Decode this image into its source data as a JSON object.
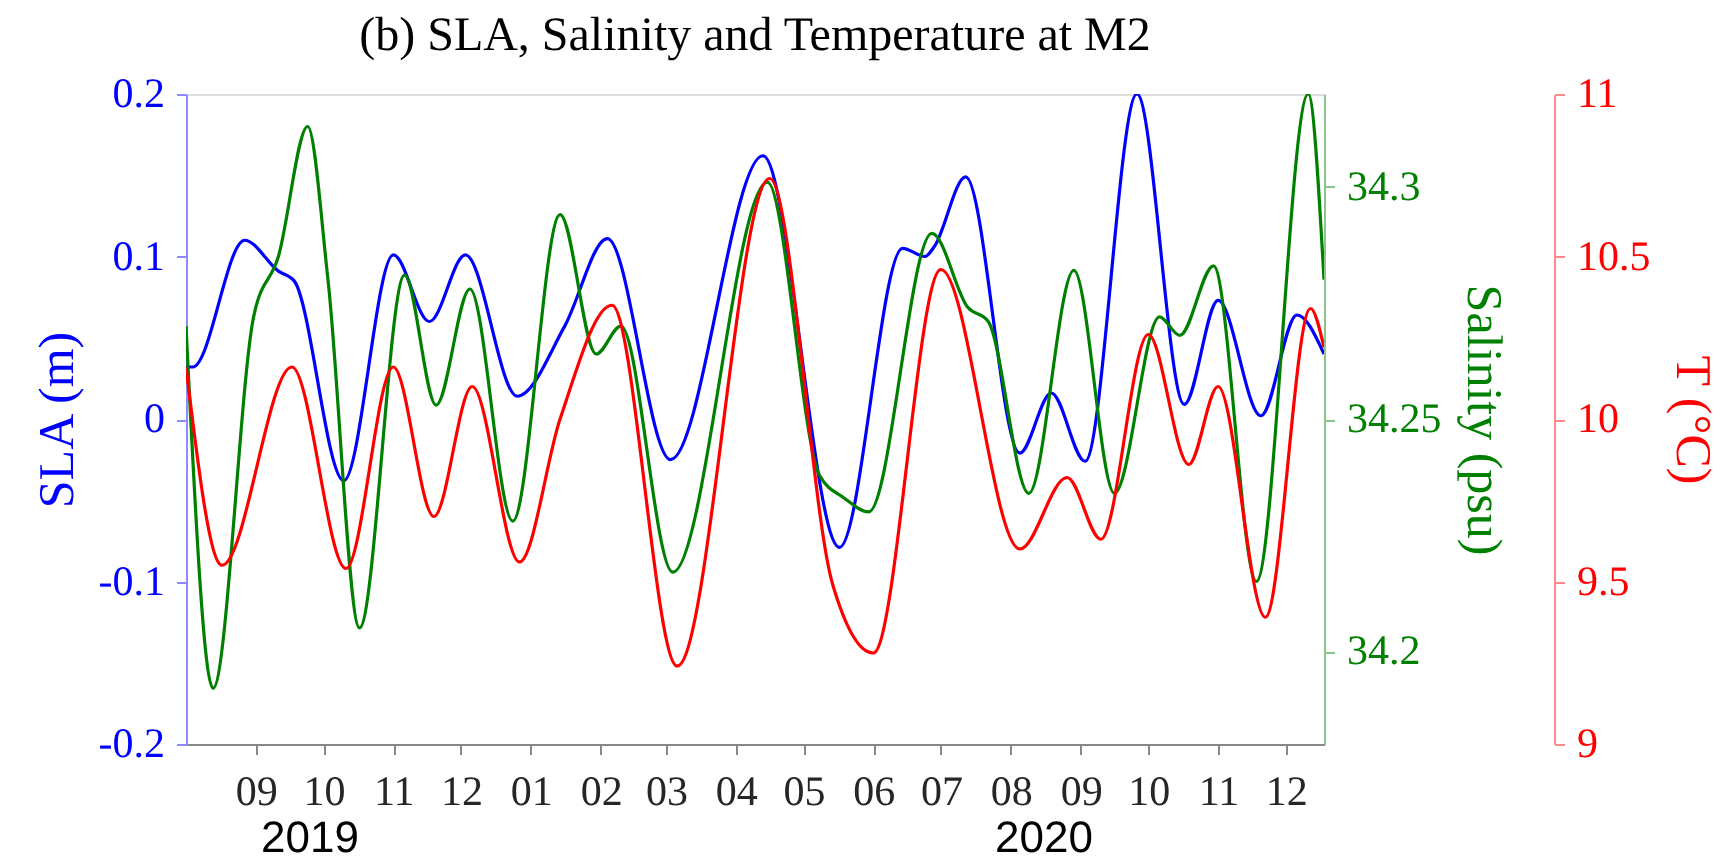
{
  "chart_data": {
    "type": "line",
    "title": "(b) SLA, Salinity and Temperature at M2",
    "ylabel": "SLA (m)",
    "y2label": "Salinity (psu)",
    "y3label": "T (°C)",
    "annotations": [
      "2019",
      "2020"
    ],
    "xlim": [
      "2019-08-01",
      "2020-12-18"
    ],
    "xticks": [
      {
        "value": "2019-09-01",
        "label": "09"
      },
      {
        "value": "2019-10-01",
        "label": "10"
      },
      {
        "value": "2019-11-01",
        "label": "11"
      },
      {
        "value": "2019-12-01",
        "label": "12"
      },
      {
        "value": "2020-01-01",
        "label": "01"
      },
      {
        "value": "2020-02-01",
        "label": "02"
      },
      {
        "value": "2020-03-01",
        "label": "03"
      },
      {
        "value": "2020-04-01",
        "label": "04"
      },
      {
        "value": "2020-05-01",
        "label": "05"
      },
      {
        "value": "2020-06-01",
        "label": "06"
      },
      {
        "value": "2020-07-01",
        "label": "07"
      },
      {
        "value": "2020-08-01",
        "label": "08"
      },
      {
        "value": "2020-09-01",
        "label": "09"
      },
      {
        "value": "2020-10-01",
        "label": "10"
      },
      {
        "value": "2020-11-01",
        "label": "11"
      },
      {
        "value": "2020-12-01",
        "label": "12"
      }
    ],
    "ylim": [
      -0.2,
      0.2
    ],
    "yticks": [
      -0.2,
      -0.1,
      0,
      0.1,
      0.2
    ],
    "y2lim": [
      34.18,
      34.32
    ],
    "y2ticks": [
      34.2,
      34.25,
      34.3
    ],
    "y3lim": [
      9,
      11
    ],
    "y3ticks": [
      9,
      9.5,
      10,
      10.5,
      11
    ],
    "grid": false,
    "series": [
      {
        "color": "#0000ff",
        "axis": "y",
        "x": [
          "2019-08-01",
          "2019-08-04",
          "2019-08-27",
          "2019-09-11",
          "2019-09-18",
          "2019-10-10",
          "2019-11-01",
          "2019-11-17",
          "2019-12-03",
          "2019-12-26",
          "2020-01-16",
          "2020-02-04",
          "2020-03-03",
          "2020-04-13",
          "2020-05-17",
          "2020-06-14",
          "2020-06-24",
          "2020-06-28",
          "2020-07-12",
          "2020-08-05",
          "2020-08-19",
          "2020-09-03",
          "2020-09-26",
          "2020-10-17",
          "2020-11-01",
          "2020-11-20",
          "2020-12-06",
          "2020-12-18"
        ],
        "values": [
          0.032,
          0.032,
          0.11,
          0.091,
          0.085,
          -0.038,
          0.101,
          0.06,
          0.101,
          0.014,
          0.057,
          0.111,
          -0.025,
          0.162,
          -0.079,
          0.105,
          0.1,
          0.106,
          0.149,
          -0.021,
          0.016,
          -0.026,
          0.2,
          0.009,
          0.073,
          0.002,
          0.064,
          0.04
        ]
      },
      {
        "color": "#008000",
        "axis": "y2",
        "x": [
          "2019-08-01",
          "2019-08-13",
          "2019-08-31",
          "2019-09-11",
          "2019-09-24",
          "2019-10-03",
          "2019-10-17",
          "2019-11-06",
          "2019-11-20",
          "2019-12-05",
          "2019-12-24",
          "2020-01-14",
          "2020-01-30",
          "2020-02-10",
          "2020-03-04",
          "2020-04-15",
          "2020-05-08",
          "2020-05-19",
          "2020-05-30",
          "2020-06-27",
          "2020-07-13",
          "2020-07-22",
          "2020-08-09",
          "2020-08-29",
          "2020-09-16",
          "2020-10-06",
          "2020-10-15",
          "2020-10-30",
          "2020-11-18",
          "2020-12-11",
          "2020-12-18"
        ],
        "values": [
          34.27,
          34.192,
          34.272,
          34.285,
          34.313,
          34.28,
          34.205,
          34.281,
          34.253,
          34.278,
          34.228,
          34.294,
          34.264,
          34.27,
          34.217,
          34.301,
          34.238,
          34.233,
          34.23,
          34.29,
          34.274,
          34.271,
          34.234,
          34.282,
          34.234,
          34.272,
          34.268,
          34.283,
          34.215,
          34.32,
          34.28
        ]
      },
      {
        "color": "#ff0000",
        "axis": "y3",
        "x": [
          "2019-08-01",
          "2019-08-17",
          "2019-09-17",
          "2019-10-11",
          "2019-11-01",
          "2019-11-19",
          "2019-12-06",
          "2019-12-27",
          "2020-01-14",
          "2020-02-06",
          "2020-03-06",
          "2020-04-16",
          "2020-05-14",
          "2020-06-01",
          "2020-07-01",
          "2020-08-05",
          "2020-08-26",
          "2020-09-10",
          "2020-10-01",
          "2020-10-19",
          "2020-11-01",
          "2020-11-22",
          "2020-12-12",
          "2020-12-18"
        ],
        "values": [
          10.16,
          9.55,
          10.16,
          9.54,
          10.16,
          9.7,
          10.1,
          9.56,
          10.0,
          10.35,
          9.24,
          10.74,
          9.49,
          9.28,
          10.46,
          9.6,
          9.82,
          9.63,
          10.26,
          9.86,
          10.1,
          9.39,
          10.34,
          10.22
        ]
      }
    ]
  }
}
